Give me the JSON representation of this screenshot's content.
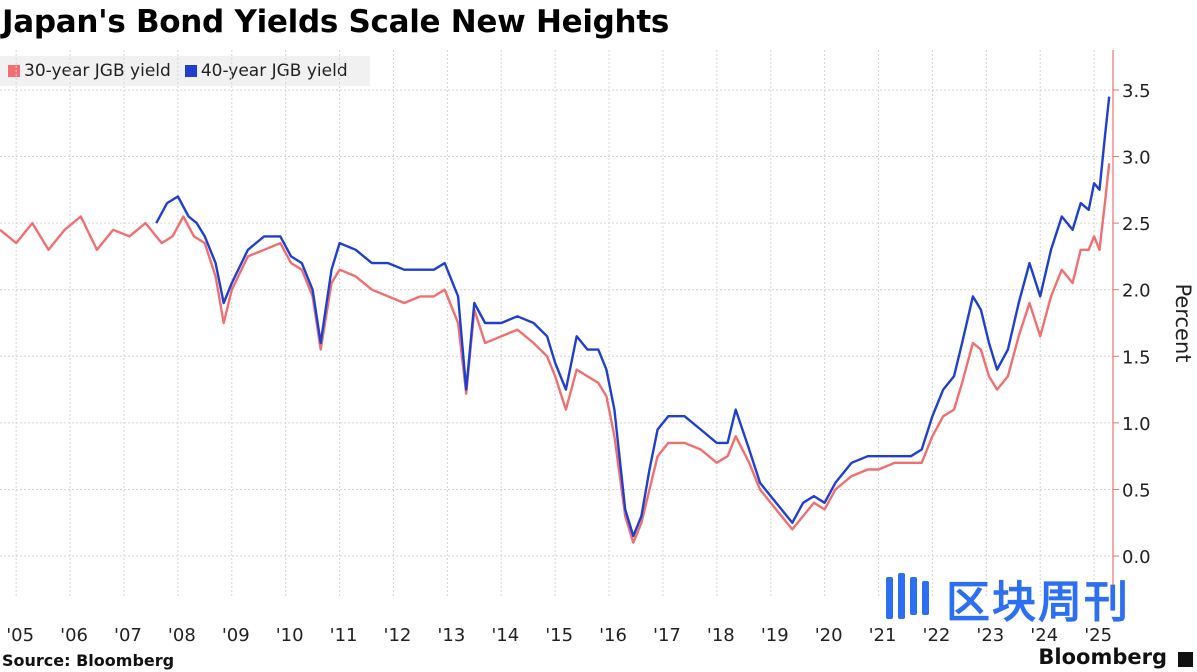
{
  "chart_data": {
    "type": "line",
    "title": "Japan's Bond Yields Scale New Heights",
    "ylabel": "Percent",
    "xlabel": "",
    "ylim": [
      -0.3,
      3.8
    ],
    "xlim": [
      2004.7,
      2025.35
    ],
    "y_ticks": [
      0.0,
      0.5,
      1.0,
      1.5,
      2.0,
      2.5,
      3.0,
      3.5
    ],
    "y_tick_labels": [
      "0.0",
      "0.5",
      "1.0",
      "1.5",
      "2.0",
      "2.5",
      "3.0",
      "3.5"
    ],
    "x_ticks": [
      2005,
      2006,
      2007,
      2008,
      2009,
      2010,
      2011,
      2012,
      2013,
      2014,
      2015,
      2016,
      2017,
      2018,
      2019,
      2020,
      2021,
      2022,
      2023,
      2024,
      2025
    ],
    "x_tick_labels": [
      "'05",
      "'06",
      "'07",
      "'08",
      "'09",
      "'10",
      "'11",
      "'12",
      "'13",
      "'14",
      "'15",
      "'16",
      "'17",
      "'18",
      "'19",
      "'20",
      "'21",
      "'22",
      "'23",
      "'24",
      "'25"
    ],
    "grid": true,
    "legend_position": "top-left",
    "series": [
      {
        "name": "30-year JGB yield",
        "color": "#f07070",
        "x": [
          2004.7,
          2005.0,
          2005.3,
          2005.6,
          2005.9,
          2006.2,
          2006.5,
          2006.8,
          2007.1,
          2007.4,
          2007.7,
          2007.9,
          2008.1,
          2008.3,
          2008.5,
          2008.7,
          2008.85,
          2009.0,
          2009.3,
          2009.6,
          2009.9,
          2010.1,
          2010.3,
          2010.5,
          2010.65,
          2010.85,
          2011.0,
          2011.3,
          2011.6,
          2011.9,
          2012.2,
          2012.5,
          2012.75,
          2012.95,
          2013.2,
          2013.35,
          2013.5,
          2013.7,
          2014.0,
          2014.3,
          2014.6,
          2014.85,
          2015.0,
          2015.2,
          2015.4,
          2015.6,
          2015.8,
          2015.95,
          2016.1,
          2016.3,
          2016.45,
          2016.6,
          2016.75,
          2016.9,
          2017.1,
          2017.4,
          2017.7,
          2018.0,
          2018.2,
          2018.35,
          2018.6,
          2018.8,
          2019.0,
          2019.2,
          2019.4,
          2019.6,
          2019.8,
          2020.0,
          2020.2,
          2020.5,
          2020.8,
          2021.0,
          2021.3,
          2021.6,
          2021.8,
          2022.0,
          2022.2,
          2022.4,
          2022.55,
          2022.75,
          2022.9,
          2023.05,
          2023.2,
          2023.4,
          2023.6,
          2023.8,
          2024.0,
          2024.2,
          2024.4,
          2024.6,
          2024.75,
          2024.9,
          2025.0,
          2025.1,
          2025.2,
          2025.28
        ],
        "values": [
          2.45,
          2.35,
          2.5,
          2.3,
          2.45,
          2.55,
          2.3,
          2.45,
          2.4,
          2.5,
          2.35,
          2.4,
          2.55,
          2.4,
          2.35,
          2.1,
          1.75,
          2.0,
          2.25,
          2.3,
          2.35,
          2.2,
          2.15,
          1.95,
          1.55,
          2.05,
          2.15,
          2.1,
          2.0,
          1.95,
          1.9,
          1.95,
          1.95,
          2.0,
          1.75,
          1.22,
          1.85,
          1.6,
          1.65,
          1.7,
          1.6,
          1.5,
          1.35,
          1.1,
          1.4,
          1.35,
          1.3,
          1.2,
          0.9,
          0.3,
          0.1,
          0.25,
          0.5,
          0.75,
          0.85,
          0.85,
          0.8,
          0.7,
          0.75,
          0.9,
          0.7,
          0.5,
          0.4,
          0.3,
          0.2,
          0.3,
          0.4,
          0.35,
          0.5,
          0.6,
          0.65,
          0.65,
          0.7,
          0.7,
          0.7,
          0.9,
          1.05,
          1.1,
          1.3,
          1.6,
          1.55,
          1.35,
          1.25,
          1.35,
          1.65,
          1.9,
          1.65,
          1.95,
          2.15,
          2.05,
          2.3,
          2.3,
          2.4,
          2.3,
          2.65,
          2.95
        ]
      },
      {
        "name": "40-year JGB yield",
        "color": "#1f3fce",
        "x": [
          2007.6,
          2007.8,
          2008.0,
          2008.2,
          2008.35,
          2008.5,
          2008.7,
          2008.85,
          2009.0,
          2009.3,
          2009.6,
          2009.9,
          2010.1,
          2010.3,
          2010.5,
          2010.65,
          2010.85,
          2011.0,
          2011.3,
          2011.6,
          2011.9,
          2012.2,
          2012.5,
          2012.75,
          2012.95,
          2013.2,
          2013.35,
          2013.5,
          2013.7,
          2014.0,
          2014.3,
          2014.6,
          2014.85,
          2015.0,
          2015.2,
          2015.4,
          2015.6,
          2015.8,
          2015.95,
          2016.1,
          2016.3,
          2016.45,
          2016.6,
          2016.75,
          2016.9,
          2017.1,
          2017.4,
          2017.7,
          2018.0,
          2018.2,
          2018.35,
          2018.6,
          2018.8,
          2019.0,
          2019.2,
          2019.4,
          2019.6,
          2019.8,
          2020.0,
          2020.2,
          2020.5,
          2020.8,
          2021.0,
          2021.3,
          2021.6,
          2021.8,
          2022.0,
          2022.2,
          2022.4,
          2022.55,
          2022.75,
          2022.9,
          2023.05,
          2023.2,
          2023.4,
          2023.6,
          2023.8,
          2024.0,
          2024.2,
          2024.4,
          2024.6,
          2024.75,
          2024.9,
          2025.0,
          2025.1,
          2025.2,
          2025.28
        ],
        "values": [
          2.5,
          2.65,
          2.7,
          2.55,
          2.5,
          2.4,
          2.2,
          1.9,
          2.05,
          2.3,
          2.4,
          2.4,
          2.25,
          2.2,
          2.0,
          1.6,
          2.15,
          2.35,
          2.3,
          2.2,
          2.2,
          2.15,
          2.15,
          2.15,
          2.2,
          1.95,
          1.25,
          1.9,
          1.75,
          1.75,
          1.8,
          1.75,
          1.65,
          1.45,
          1.25,
          1.65,
          1.55,
          1.55,
          1.4,
          1.1,
          0.35,
          0.15,
          0.3,
          0.65,
          0.95,
          1.05,
          1.05,
          0.95,
          0.85,
          0.85,
          1.1,
          0.8,
          0.55,
          0.45,
          0.35,
          0.25,
          0.4,
          0.45,
          0.4,
          0.55,
          0.7,
          0.75,
          0.75,
          0.75,
          0.75,
          0.8,
          1.05,
          1.25,
          1.35,
          1.6,
          1.95,
          1.85,
          1.6,
          1.4,
          1.55,
          1.9,
          2.2,
          1.95,
          2.3,
          2.55,
          2.45,
          2.65,
          2.6,
          2.8,
          2.75,
          3.15,
          3.45
        ]
      }
    ]
  },
  "legend": {
    "items": [
      {
        "label": "30-year JGB yield",
        "color": "#f07070"
      },
      {
        "label": "40-year JGB yield",
        "color": "#1f3fce"
      }
    ]
  },
  "source": "Source: Bloomberg",
  "brand": "Bloomberg",
  "watermark": "区块周刊"
}
